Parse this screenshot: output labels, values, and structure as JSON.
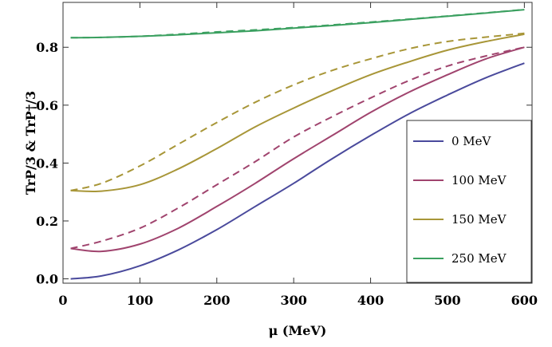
{
  "chart_data": {
    "type": "line",
    "title": "",
    "xlabel": "μ (MeV)",
    "ylabel": "TrP/3 & TrP†/3",
    "xlim": [
      0,
      610
    ],
    "ylim": [
      -0.015,
      0.955
    ],
    "xticks": [
      0,
      100,
      200,
      300,
      400,
      500,
      600
    ],
    "yticks": [
      0.0,
      0.2,
      0.4,
      0.6,
      0.8
    ],
    "xtick_labels": [
      "0",
      "100",
      "200",
      "300",
      "400",
      "500",
      "600"
    ],
    "ytick_labels": [
      "0.0",
      "0.2",
      "0.4",
      "0.6",
      "0.8"
    ],
    "grid": false,
    "legend_position": "right",
    "x": [
      10,
      50,
      100,
      150,
      200,
      250,
      300,
      350,
      400,
      450,
      500,
      550,
      600
    ],
    "series": [
      {
        "name": "0 MeV",
        "color": "#4a4a9c",
        "solid": [
          0.0,
          0.01,
          0.045,
          0.1,
          0.17,
          0.25,
          0.33,
          0.415,
          0.495,
          0.57,
          0.635,
          0.695,
          0.745
        ],
        "dashed": null
      },
      {
        "name": "100 MeV",
        "color": "#a0446e",
        "solid": [
          0.105,
          0.095,
          0.12,
          0.175,
          0.25,
          0.33,
          0.415,
          0.495,
          0.575,
          0.645,
          0.705,
          0.76,
          0.8
        ],
        "dashed": [
          0.105,
          0.13,
          0.175,
          0.245,
          0.325,
          0.405,
          0.49,
          0.56,
          0.625,
          0.685,
          0.735,
          0.77,
          0.8
        ]
      },
      {
        "name": "150 MeV",
        "color": "#a89638",
        "solid": [
          0.305,
          0.303,
          0.325,
          0.38,
          0.45,
          0.525,
          0.59,
          0.65,
          0.705,
          0.75,
          0.79,
          0.82,
          0.845
        ],
        "dashed": [
          0.305,
          0.33,
          0.39,
          0.465,
          0.54,
          0.61,
          0.67,
          0.72,
          0.76,
          0.795,
          0.82,
          0.835,
          0.848
        ]
      },
      {
        "name": "250 MeV",
        "color": "#3ba060",
        "solid": [
          0.833,
          0.834,
          0.838,
          0.843,
          0.85,
          0.857,
          0.866,
          0.875,
          0.885,
          0.896,
          0.907,
          0.918,
          0.93
        ],
        "dashed": [
          0.833,
          0.834,
          0.838,
          0.845,
          0.853,
          0.86,
          0.868,
          0.877,
          0.887,
          0.897,
          0.908,
          0.919,
          0.93
        ]
      }
    ]
  }
}
